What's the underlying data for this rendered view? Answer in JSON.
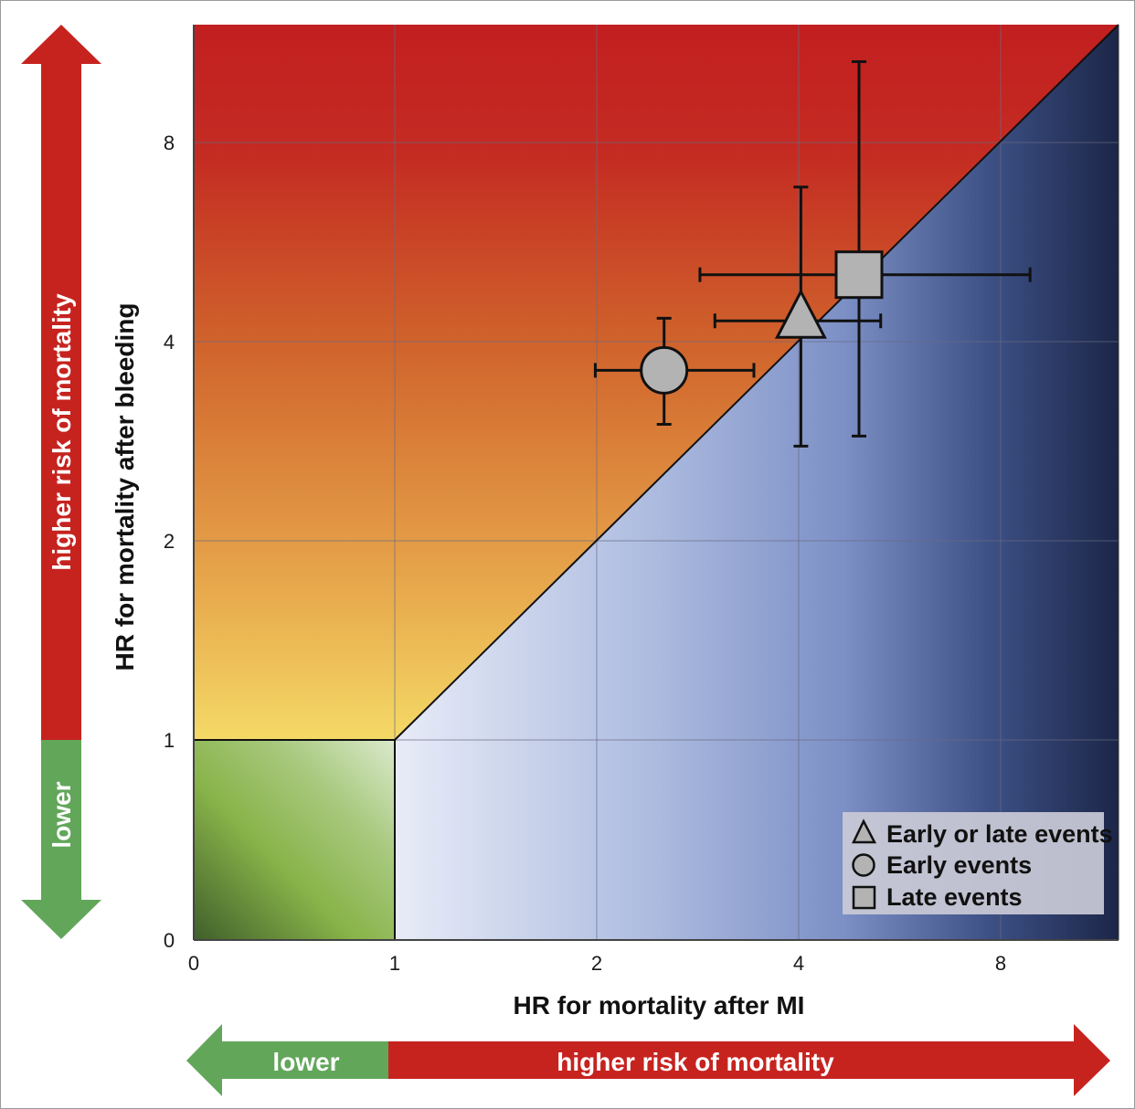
{
  "chart_data": {
    "type": "scatter",
    "title": "",
    "xlabel": "HR for mortality after MI",
    "ylabel": "HR for mortality after bleeding",
    "x_ticks": [
      0,
      1,
      2,
      4,
      8
    ],
    "y_ticks": [
      0,
      1,
      2,
      4,
      8
    ],
    "xlim": [
      0,
      12
    ],
    "ylim": [
      0,
      12
    ],
    "grid": true,
    "scale": "log2 above 1, linear between 0 and 1",
    "legend_position": "bottom-right",
    "regions": [
      {
        "name": "bleeding-higher-risk",
        "color": "#c0201f",
        "fade_to": "#f3d765",
        "bounded_by": "y = x diagonal"
      },
      {
        "name": "mi-higher-risk",
        "color": "#1e2a55",
        "fade_to": "#e6eaf7",
        "bounded_by": "y = x diagonal"
      },
      {
        "name": "lower-risk-both",
        "color": "#8bb54a",
        "range": [
          0,
          1
        ]
      }
    ],
    "series": [
      {
        "name": "Early or late events",
        "marker": "triangle",
        "x": 4.03,
        "y": 4.3,
        "x_ci": [
          3.0,
          5.3
        ],
        "y_ci": [
          2.78,
          6.85
        ]
      },
      {
        "name": "Early events",
        "marker": "circle",
        "x": 2.52,
        "y": 3.62,
        "x_ci": [
          1.99,
          3.43
        ],
        "y_ci": [
          3.0,
          4.34
        ]
      },
      {
        "name": "Late events",
        "marker": "square",
        "x": 4.92,
        "y": 5.05,
        "x_ci": [
          2.85,
          8.85
        ],
        "y_ci": [
          2.88,
          10.6
        ]
      }
    ]
  },
  "arrows": {
    "y_higher": "higher risk of mortality",
    "y_lower": "lower",
    "x_higher": "higher risk of mortality",
    "x_lower": "lower",
    "red": "#c6231f",
    "green": "#62a65a"
  }
}
